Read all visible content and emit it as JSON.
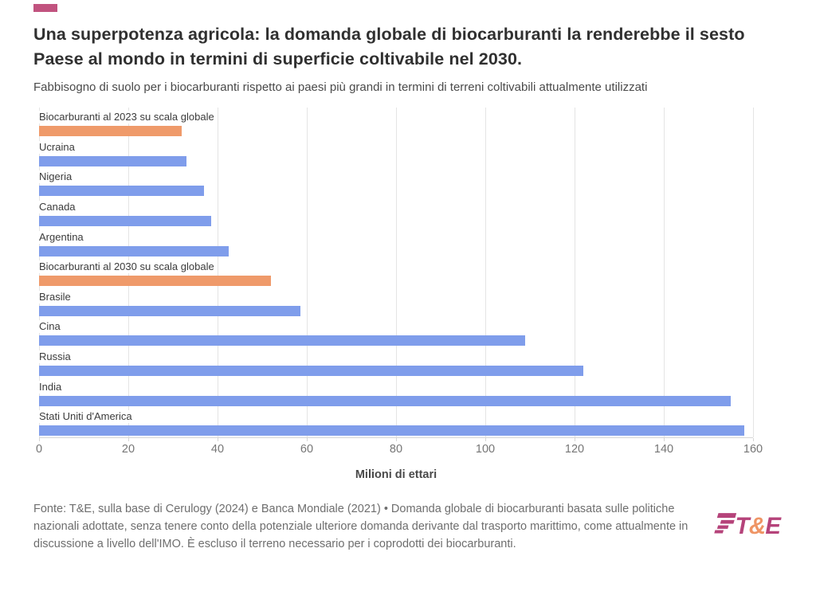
{
  "header": {
    "accent_color": "#c1537f",
    "title": "Una superpotenza agricola: la domanda globale di biocarburanti la renderebbe il sesto Paese al mondo in termini di superficie coltivabile nel 2030.",
    "subtitle": "Fabbisogno di suolo per i biocarburanti rispetto ai paesi più grandi in termini di terreni coltivabili attualmente utilizzati"
  },
  "chart_data": {
    "type": "bar",
    "orientation": "horizontal",
    "items": [
      {
        "label": "Biocarburanti al 2023 su scala globale",
        "value": 32,
        "kind": "biofuel"
      },
      {
        "label": "Ucraina",
        "value": 33,
        "kind": "country"
      },
      {
        "label": "Nigeria",
        "value": 37,
        "kind": "country"
      },
      {
        "label": "Canada",
        "value": 38.5,
        "kind": "country"
      },
      {
        "label": "Argentina",
        "value": 42.5,
        "kind": "country"
      },
      {
        "label": "Biocarburanti al 2030 su scala globale",
        "value": 52,
        "kind": "biofuel"
      },
      {
        "label": "Brasile",
        "value": 58.5,
        "kind": "country"
      },
      {
        "label": "Cina",
        "value": 109,
        "kind": "country"
      },
      {
        "label": "Russia",
        "value": 122,
        "kind": "country"
      },
      {
        "label": "India",
        "value": 155,
        "kind": "country"
      },
      {
        "label": "Stati Uniti d'America",
        "value": 158,
        "kind": "country"
      }
    ],
    "xlabel": "Milioni di ettari",
    "xlim": [
      0,
      160
    ],
    "xticks": [
      0,
      20,
      40,
      60,
      80,
      100,
      120,
      140,
      160
    ],
    "grid": true,
    "legend": "none",
    "colors": {
      "country": "#7f9deb",
      "biofuel": "#ef9a6a"
    }
  },
  "footer": {
    "source_text": "Fonte: T&E, sulla base di Cerulogy (2024) e Banca Mondiale (2021) • Domanda globale di biocarburanti basata sulle politiche nazionali adottate, senza tenere conto della potenziale ulteriore domanda derivante dal trasporto marittimo, come attualmente in discussione a livello dell'IMO. È escluso il terreno necessario per i coprodotti dei biocarburanti.",
    "logo": {
      "t": "T",
      "amp": "&",
      "e": "E",
      "magenta": "#b5437a",
      "orange": "#ef9565"
    }
  }
}
